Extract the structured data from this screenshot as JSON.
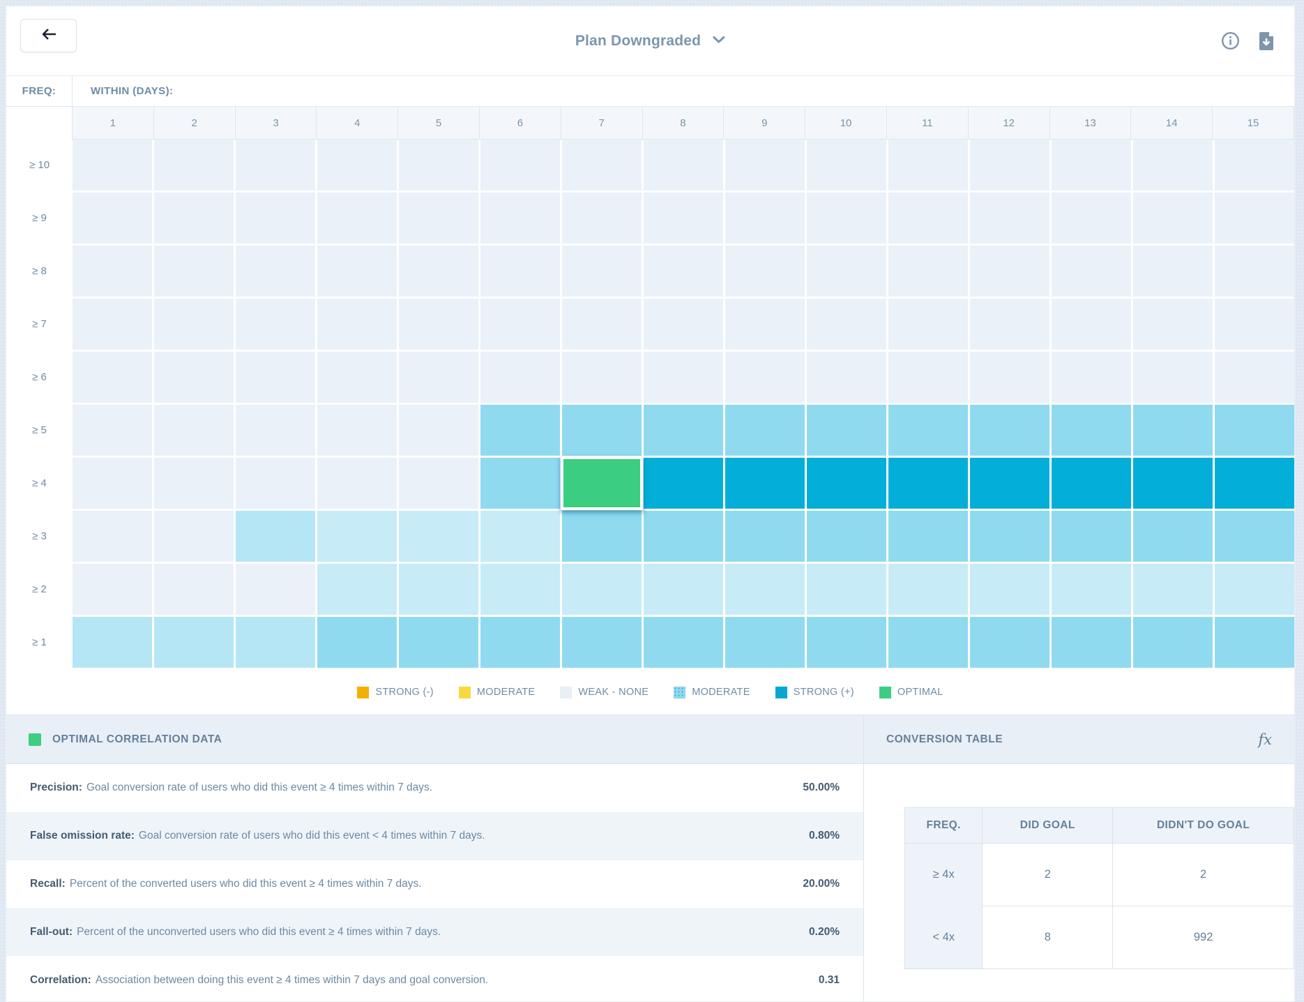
{
  "colors": {
    "page_bg": "#dfe8f2",
    "accent_slate": "#7b96ad",
    "levels": {
      "w": "#eaf1f8",
      "l": "#c7ecf8",
      "lm": "#b5e6f5",
      "m": "#90daf0",
      "s": "#03afd8",
      "o": "#3bcd80"
    }
  },
  "topbar": {
    "back_icon": "left-arrow",
    "title": "Plan Downgraded",
    "info_icon": "info-circle",
    "download_icon": "file-download"
  },
  "heatmap": {
    "freq_label": "FREQ:",
    "within_label": "WITHIN (DAYS):",
    "columns": [
      "1",
      "2",
      "3",
      "4",
      "5",
      "6",
      "7",
      "8",
      "9",
      "10",
      "11",
      "12",
      "13",
      "14",
      "15"
    ],
    "rows": [
      {
        "label": "≥ 10",
        "cells": [
          "w",
          "w",
          "w",
          "w",
          "w",
          "w",
          "w",
          "w",
          "w",
          "w",
          "w",
          "w",
          "w",
          "w",
          "w"
        ]
      },
      {
        "label": "≥ 9",
        "cells": [
          "w",
          "w",
          "w",
          "w",
          "w",
          "w",
          "w",
          "w",
          "w",
          "w",
          "w",
          "w",
          "w",
          "w",
          "w"
        ]
      },
      {
        "label": "≥ 8",
        "cells": [
          "w",
          "w",
          "w",
          "w",
          "w",
          "w",
          "w",
          "w",
          "w",
          "w",
          "w",
          "w",
          "w",
          "w",
          "w"
        ]
      },
      {
        "label": "≥ 7",
        "cells": [
          "w",
          "w",
          "w",
          "w",
          "w",
          "w",
          "w",
          "w",
          "w",
          "w",
          "w",
          "w",
          "w",
          "w",
          "w"
        ]
      },
      {
        "label": "≥ 6",
        "cells": [
          "w",
          "w",
          "w",
          "w",
          "w",
          "w",
          "w",
          "w",
          "w",
          "w",
          "w",
          "w",
          "w",
          "w",
          "w"
        ]
      },
      {
        "label": "≥ 5",
        "cells": [
          "w",
          "w",
          "w",
          "w",
          "w",
          "m",
          "m",
          "m",
          "m",
          "m",
          "m",
          "m",
          "m",
          "m",
          "m"
        ]
      },
      {
        "label": "≥ 4",
        "cells": [
          "w",
          "w",
          "w",
          "w",
          "w",
          "m",
          "o",
          "s",
          "s",
          "s",
          "s",
          "s",
          "s",
          "s",
          "s"
        ]
      },
      {
        "label": "≥ 3",
        "cells": [
          "w",
          "w",
          "lm",
          "l",
          "l",
          "l",
          "m",
          "m",
          "m",
          "m",
          "m",
          "m",
          "m",
          "m",
          "m"
        ]
      },
      {
        "label": "≥ 2",
        "cells": [
          "w",
          "w",
          "w",
          "l",
          "l",
          "l",
          "l",
          "l",
          "l",
          "l",
          "l",
          "l",
          "l",
          "l",
          "l"
        ]
      },
      {
        "label": "≥ 1",
        "cells": [
          "lm",
          "lm",
          "lm",
          "m",
          "m",
          "m",
          "m",
          "m",
          "m",
          "m",
          "m",
          "m",
          "m",
          "m",
          "m"
        ]
      }
    ],
    "selected_cell": {
      "row": "≥ 4",
      "column": "7",
      "level": "OPTIMAL"
    }
  },
  "legend": [
    {
      "label": "STRONG (-)",
      "color": "#f4b000",
      "texture": "solid"
    },
    {
      "label": "MODERATE",
      "color": "#f9d83f",
      "texture": "solid"
    },
    {
      "label": "WEAK - NONE",
      "color": "#e7eff7",
      "texture": "solid"
    },
    {
      "label": "MODERATE",
      "color": "#8edaf0",
      "texture": "dots"
    },
    {
      "label": "STRONG (+)",
      "color": "#09a6d3",
      "texture": "solid"
    },
    {
      "label": "OPTIMAL",
      "color": "#3ecd81",
      "texture": "solid"
    }
  ],
  "optimal_panel": {
    "title": "OPTIMAL CORRELATION DATA",
    "swatch_color": "#3ecd81",
    "rows": [
      {
        "label": "Precision:",
        "description": "Goal conversion rate of users who did this event ≥ 4 times within 7 days.",
        "value": "50.00%"
      },
      {
        "label": "False omission rate:",
        "description": "Goal conversion rate of users who did this event < 4 times within 7 days.",
        "value": "0.80%"
      },
      {
        "label": "Recall:",
        "description": "Percent of the converted users who did this event ≥ 4 times within 7 days.",
        "value": "20.00%"
      },
      {
        "label": "Fall-out:",
        "description": "Percent of the unconverted users who did this event ≥ 4 times within 7 days.",
        "value": "0.20%"
      },
      {
        "label": "Correlation:",
        "description": "Association between doing this event ≥ 4 times within 7 days and goal conversion.",
        "value": "0.31"
      }
    ]
  },
  "conversion_panel": {
    "title": "CONVERSION TABLE",
    "fx_icon": "fx",
    "table": {
      "headers": [
        "FREQ.",
        "DID GOAL",
        "DIDN'T DO GOAL"
      ],
      "rows": [
        {
          "freq": "≥ 4x",
          "did_goal": "2",
          "didnt_do_goal": "2"
        },
        {
          "freq": "< 4x",
          "did_goal": "8",
          "didnt_do_goal": "992"
        }
      ]
    }
  },
  "chart_data": {
    "type": "heatmap",
    "title": "Plan Downgraded",
    "xlabel": "WITHIN (DAYS):",
    "ylabel": "FREQ:",
    "x": [
      "1",
      "2",
      "3",
      "4",
      "5",
      "6",
      "7",
      "8",
      "9",
      "10",
      "11",
      "12",
      "13",
      "14",
      "15"
    ],
    "y": [
      "≥ 10",
      "≥ 9",
      "≥ 8",
      "≥ 7",
      "≥ 6",
      "≥ 5",
      "≥ 4",
      "≥ 3",
      "≥ 2",
      "≥ 1"
    ],
    "value_scale": [
      "STRONG (-)",
      "MODERATE",
      "WEAK - NONE",
      "MODERATE",
      "STRONG (+)",
      "OPTIMAL"
    ],
    "values": [
      [
        "w",
        "w",
        "w",
        "w",
        "w",
        "w",
        "w",
        "w",
        "w",
        "w",
        "w",
        "w",
        "w",
        "w",
        "w"
      ],
      [
        "w",
        "w",
        "w",
        "w",
        "w",
        "w",
        "w",
        "w",
        "w",
        "w",
        "w",
        "w",
        "w",
        "w",
        "w"
      ],
      [
        "w",
        "w",
        "w",
        "w",
        "w",
        "w",
        "w",
        "w",
        "w",
        "w",
        "w",
        "w",
        "w",
        "w",
        "w"
      ],
      [
        "w",
        "w",
        "w",
        "w",
        "w",
        "w",
        "w",
        "w",
        "w",
        "w",
        "w",
        "w",
        "w",
        "w",
        "w"
      ],
      [
        "w",
        "w",
        "w",
        "w",
        "w",
        "w",
        "w",
        "w",
        "w",
        "w",
        "w",
        "w",
        "w",
        "w",
        "w"
      ],
      [
        "w",
        "w",
        "w",
        "w",
        "w",
        "m",
        "m",
        "m",
        "m",
        "m",
        "m",
        "m",
        "m",
        "m",
        "m"
      ],
      [
        "w",
        "w",
        "w",
        "w",
        "w",
        "m",
        "o",
        "s",
        "s",
        "s",
        "s",
        "s",
        "s",
        "s",
        "s"
      ],
      [
        "w",
        "w",
        "lm",
        "l",
        "l",
        "l",
        "m",
        "m",
        "m",
        "m",
        "m",
        "m",
        "m",
        "m",
        "m"
      ],
      [
        "w",
        "w",
        "w",
        "l",
        "l",
        "l",
        "l",
        "l",
        "l",
        "l",
        "l",
        "l",
        "l",
        "l",
        "l"
      ],
      [
        "lm",
        "lm",
        "lm",
        "m",
        "m",
        "m",
        "m",
        "m",
        "m",
        "m",
        "m",
        "m",
        "m",
        "m",
        "m"
      ]
    ],
    "legend_position": "bottom",
    "grid": true
  }
}
